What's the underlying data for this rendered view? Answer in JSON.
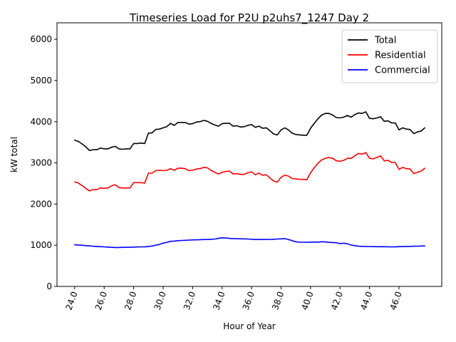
{
  "chart_data": {
    "type": "line",
    "title": "Timeseries Load for P2U p2uhs7_1247  Day 2",
    "xlabel": "Hour of Year",
    "ylabel": "kW total",
    "xlim": [
      22.8,
      48.9
    ],
    "ylim": [
      0,
      6400
    ],
    "xticks": [
      24,
      26,
      28,
      30,
      32,
      34,
      36,
      38,
      40,
      42,
      44,
      46
    ],
    "xtick_labels": [
      "24.0",
      "26.0",
      "28.0",
      "30.0",
      "32.0",
      "34.0",
      "36.0",
      "38.0",
      "40.0",
      "42.0",
      "44.0",
      "46.0"
    ],
    "yticks": [
      0,
      1000,
      2000,
      3000,
      4000,
      5000,
      6000
    ],
    "ytick_labels": [
      "0",
      "1000",
      "2000",
      "3000",
      "4000",
      "5000",
      "6000"
    ],
    "legend_position": "top-right",
    "grid": false,
    "series": [
      {
        "name": "Total",
        "color": "#000000",
        "points": [
          [
            24.0,
            3550
          ],
          [
            24.25,
            3520
          ],
          [
            24.5,
            3460
          ],
          [
            24.75,
            3390
          ],
          [
            25.0,
            3300
          ],
          [
            25.25,
            3320
          ],
          [
            25.5,
            3320
          ],
          [
            25.75,
            3360
          ],
          [
            26.0,
            3340
          ],
          [
            26.25,
            3340
          ],
          [
            26.5,
            3380
          ],
          [
            26.75,
            3400
          ],
          [
            27.0,
            3340
          ],
          [
            27.25,
            3330
          ],
          [
            27.5,
            3340
          ],
          [
            27.75,
            3340
          ],
          [
            28.0,
            3470
          ],
          [
            28.25,
            3470
          ],
          [
            28.5,
            3480
          ],
          [
            28.75,
            3470
          ],
          [
            29.0,
            3720
          ],
          [
            29.25,
            3730
          ],
          [
            29.5,
            3810
          ],
          [
            29.75,
            3820
          ],
          [
            30.0,
            3850
          ],
          [
            30.25,
            3880
          ],
          [
            30.5,
            3960
          ],
          [
            30.75,
            3910
          ],
          [
            31.0,
            3980
          ],
          [
            31.25,
            3980
          ],
          [
            31.5,
            3980
          ],
          [
            31.75,
            3940
          ],
          [
            32.0,
            3950
          ],
          [
            32.25,
            3990
          ],
          [
            32.5,
            4000
          ],
          [
            32.75,
            4030
          ],
          [
            33.0,
            4010
          ],
          [
            33.25,
            3960
          ],
          [
            33.5,
            3920
          ],
          [
            33.75,
            3890
          ],
          [
            34.0,
            3950
          ],
          [
            34.25,
            3960
          ],
          [
            34.5,
            3960
          ],
          [
            34.75,
            3890
          ],
          [
            35.0,
            3900
          ],
          [
            35.25,
            3870
          ],
          [
            35.5,
            3880
          ],
          [
            35.75,
            3910
          ],
          [
            36.0,
            3930
          ],
          [
            36.25,
            3860
          ],
          [
            36.5,
            3890
          ],
          [
            36.75,
            3840
          ],
          [
            37.0,
            3850
          ],
          [
            37.25,
            3780
          ],
          [
            37.5,
            3700
          ],
          [
            37.75,
            3680
          ],
          [
            38.0,
            3800
          ],
          [
            38.25,
            3850
          ],
          [
            38.5,
            3800
          ],
          [
            38.75,
            3720
          ],
          [
            39.0,
            3690
          ],
          [
            39.25,
            3680
          ],
          [
            39.5,
            3670
          ],
          [
            39.75,
            3670
          ],
          [
            40.0,
            3840
          ],
          [
            40.25,
            3960
          ],
          [
            40.5,
            4070
          ],
          [
            40.75,
            4160
          ],
          [
            41.0,
            4200
          ],
          [
            41.25,
            4200
          ],
          [
            41.5,
            4160
          ],
          [
            41.75,
            4100
          ],
          [
            42.0,
            4090
          ],
          [
            42.25,
            4110
          ],
          [
            42.5,
            4150
          ],
          [
            42.75,
            4110
          ],
          [
            43.0,
            4170
          ],
          [
            43.25,
            4210
          ],
          [
            43.5,
            4200
          ],
          [
            43.75,
            4240
          ],
          [
            44.0,
            4080
          ],
          [
            44.25,
            4070
          ],
          [
            44.5,
            4090
          ],
          [
            44.75,
            4120
          ],
          [
            45.0,
            4010
          ],
          [
            45.25,
            4020
          ],
          [
            45.5,
            3970
          ],
          [
            45.75,
            3970
          ],
          [
            46.0,
            3800
          ],
          [
            46.25,
            3850
          ],
          [
            46.5,
            3820
          ],
          [
            46.75,
            3810
          ],
          [
            47.0,
            3710
          ],
          [
            47.25,
            3750
          ],
          [
            47.5,
            3770
          ],
          [
            47.75,
            3850
          ]
        ]
      },
      {
        "name": "Residential",
        "color": "#ff0000",
        "points": [
          [
            24.0,
            2540
          ],
          [
            24.25,
            2510
          ],
          [
            24.5,
            2450
          ],
          [
            24.75,
            2380
          ],
          [
            25.0,
            2320
          ],
          [
            25.25,
            2350
          ],
          [
            25.5,
            2350
          ],
          [
            25.75,
            2390
          ],
          [
            26.0,
            2380
          ],
          [
            26.25,
            2390
          ],
          [
            26.5,
            2440
          ],
          [
            26.75,
            2470
          ],
          [
            27.0,
            2400
          ],
          [
            27.25,
            2390
          ],
          [
            27.5,
            2390
          ],
          [
            27.75,
            2390
          ],
          [
            28.0,
            2520
          ],
          [
            28.25,
            2520
          ],
          [
            28.5,
            2520
          ],
          [
            28.75,
            2510
          ],
          [
            29.0,
            2750
          ],
          [
            29.25,
            2750
          ],
          [
            29.5,
            2810
          ],
          [
            29.75,
            2820
          ],
          [
            30.0,
            2810
          ],
          [
            30.25,
            2820
          ],
          [
            30.5,
            2860
          ],
          [
            30.75,
            2820
          ],
          [
            31.0,
            2870
          ],
          [
            31.25,
            2870
          ],
          [
            31.5,
            2860
          ],
          [
            31.75,
            2810
          ],
          [
            32.0,
            2820
          ],
          [
            32.25,
            2850
          ],
          [
            32.5,
            2860
          ],
          [
            32.75,
            2890
          ],
          [
            33.0,
            2880
          ],
          [
            33.25,
            2820
          ],
          [
            33.5,
            2770
          ],
          [
            33.75,
            2730
          ],
          [
            34.0,
            2770
          ],
          [
            34.25,
            2790
          ],
          [
            34.5,
            2800
          ],
          [
            34.75,
            2730
          ],
          [
            35.0,
            2740
          ],
          [
            35.25,
            2720
          ],
          [
            35.5,
            2720
          ],
          [
            35.75,
            2760
          ],
          [
            36.0,
            2780
          ],
          [
            36.25,
            2710
          ],
          [
            36.5,
            2750
          ],
          [
            36.75,
            2700
          ],
          [
            37.0,
            2710
          ],
          [
            37.25,
            2630
          ],
          [
            37.5,
            2560
          ],
          [
            37.75,
            2530
          ],
          [
            38.0,
            2650
          ],
          [
            38.25,
            2700
          ],
          [
            38.5,
            2680
          ],
          [
            38.75,
            2620
          ],
          [
            39.0,
            2610
          ],
          [
            39.25,
            2600
          ],
          [
            39.5,
            2600
          ],
          [
            39.75,
            2590
          ],
          [
            40.0,
            2760
          ],
          [
            40.25,
            2880
          ],
          [
            40.5,
            2990
          ],
          [
            40.75,
            3070
          ],
          [
            41.0,
            3110
          ],
          [
            41.25,
            3130
          ],
          [
            41.5,
            3110
          ],
          [
            41.75,
            3050
          ],
          [
            42.0,
            3040
          ],
          [
            42.25,
            3060
          ],
          [
            42.5,
            3110
          ],
          [
            42.75,
            3110
          ],
          [
            43.0,
            3170
          ],
          [
            43.25,
            3230
          ],
          [
            43.5,
            3210
          ],
          [
            43.75,
            3250
          ],
          [
            44.0,
            3110
          ],
          [
            44.25,
            3100
          ],
          [
            44.5,
            3130
          ],
          [
            44.75,
            3170
          ],
          [
            45.0,
            3050
          ],
          [
            45.25,
            3060
          ],
          [
            45.5,
            3010
          ],
          [
            45.75,
            3010
          ],
          [
            46.0,
            2840
          ],
          [
            46.25,
            2890
          ],
          [
            46.5,
            2860
          ],
          [
            46.75,
            2850
          ],
          [
            47.0,
            2740
          ],
          [
            47.25,
            2770
          ],
          [
            47.5,
            2800
          ],
          [
            47.75,
            2870
          ]
        ]
      },
      {
        "name": "Commercial",
        "color": "#0000ff",
        "points": [
          [
            24.0,
            1010
          ],
          [
            24.25,
            1005
          ],
          [
            24.5,
            1000
          ],
          [
            24.75,
            990
          ],
          [
            25.0,
            985
          ],
          [
            25.25,
            975
          ],
          [
            25.5,
            970
          ],
          [
            25.75,
            965
          ],
          [
            26.0,
            960
          ],
          [
            26.25,
            955
          ],
          [
            26.5,
            950
          ],
          [
            26.75,
            945
          ],
          [
            27.0,
            945
          ],
          [
            27.25,
            948
          ],
          [
            27.5,
            950
          ],
          [
            27.75,
            950
          ],
          [
            28.0,
            955
          ],
          [
            28.25,
            958
          ],
          [
            28.5,
            960
          ],
          [
            28.75,
            962
          ],
          [
            29.0,
            970
          ],
          [
            29.25,
            980
          ],
          [
            29.5,
            1000
          ],
          [
            29.75,
            1020
          ],
          [
            30.0,
            1050
          ],
          [
            30.25,
            1070
          ],
          [
            30.5,
            1095
          ],
          [
            30.75,
            1100
          ],
          [
            31.0,
            1110
          ],
          [
            31.25,
            1115
          ],
          [
            31.5,
            1120
          ],
          [
            31.75,
            1125
          ],
          [
            32.0,
            1130
          ],
          [
            32.25,
            1132
          ],
          [
            32.5,
            1135
          ],
          [
            32.75,
            1138
          ],
          [
            33.0,
            1140
          ],
          [
            33.25,
            1145
          ],
          [
            33.5,
            1150
          ],
          [
            33.75,
            1165
          ],
          [
            34.0,
            1180
          ],
          [
            34.25,
            1175
          ],
          [
            34.5,
            1165
          ],
          [
            34.75,
            1160
          ],
          [
            35.0,
            1160
          ],
          [
            35.25,
            1155
          ],
          [
            35.5,
            1155
          ],
          [
            35.75,
            1150
          ],
          [
            36.0,
            1145
          ],
          [
            36.25,
            1140
          ],
          [
            36.5,
            1140
          ],
          [
            36.75,
            1138
          ],
          [
            37.0,
            1140
          ],
          [
            37.25,
            1142
          ],
          [
            37.5,
            1145
          ],
          [
            37.75,
            1150
          ],
          [
            38.0,
            1155
          ],
          [
            38.25,
            1160
          ],
          [
            38.5,
            1140
          ],
          [
            38.75,
            1110
          ],
          [
            39.0,
            1085
          ],
          [
            39.25,
            1075
          ],
          [
            39.5,
            1072
          ],
          [
            39.75,
            1070
          ],
          [
            40.0,
            1075
          ],
          [
            40.25,
            1080
          ],
          [
            40.5,
            1075
          ],
          [
            40.75,
            1085
          ],
          [
            41.0,
            1080
          ],
          [
            41.25,
            1070
          ],
          [
            41.5,
            1065
          ],
          [
            41.75,
            1060
          ],
          [
            42.0,
            1040
          ],
          [
            42.25,
            1050
          ],
          [
            42.5,
            1035
          ],
          [
            42.75,
            1005
          ],
          [
            43.0,
            990
          ],
          [
            43.25,
            975
          ],
          [
            43.5,
            972
          ],
          [
            43.75,
            970
          ],
          [
            44.0,
            968
          ],
          [
            44.25,
            966
          ],
          [
            44.5,
            965
          ],
          [
            44.75,
            963
          ],
          [
            45.0,
            965
          ],
          [
            45.25,
            962
          ],
          [
            45.5,
            960
          ],
          [
            45.75,
            962
          ],
          [
            46.0,
            965
          ],
          [
            46.25,
            967
          ],
          [
            46.5,
            970
          ],
          [
            46.75,
            972
          ],
          [
            47.0,
            975
          ],
          [
            47.25,
            978
          ],
          [
            47.5,
            980
          ],
          [
            47.75,
            983
          ]
        ]
      }
    ]
  }
}
